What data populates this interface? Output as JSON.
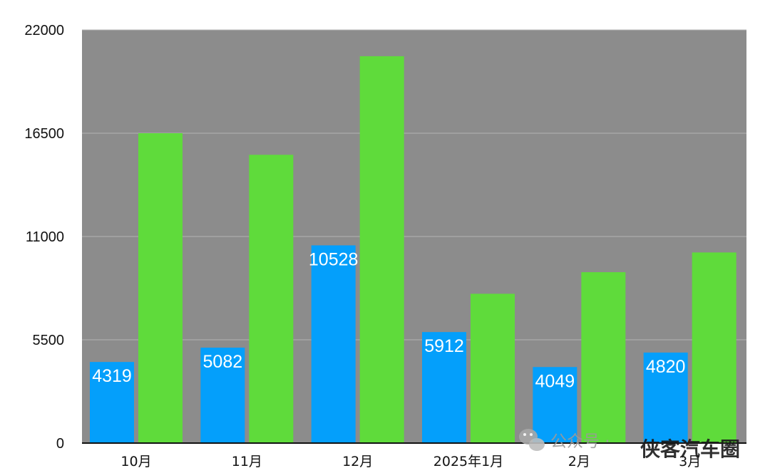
{
  "chart_data": {
    "type": "bar",
    "categories": [
      "10月",
      "11月",
      "12月",
      "2025年1月",
      "2月",
      "3月"
    ],
    "series": [
      {
        "values": [
          4319,
          5082,
          10528,
          5912,
          4049,
          4820
        ],
        "color": "#049ffb",
        "labels_shown": true
      },
      {
        "values": [
          16500,
          15350,
          20600,
          7950,
          9100,
          10150
        ],
        "color": "#5fdb3b",
        "labels_shown": false
      }
    ],
    "yticks": [
      "0",
      "5500",
      "11000",
      "16500",
      "22000"
    ],
    "ylim": [
      0,
      22000
    ],
    "grid": true,
    "plot_background": "#8c8c8c",
    "gridline_color": "#b3b3b3",
    "legend": "none"
  },
  "watermark": {
    "icon": "wechat-icon",
    "label": "公众号 ·",
    "brand": "侠客汽车圈"
  }
}
